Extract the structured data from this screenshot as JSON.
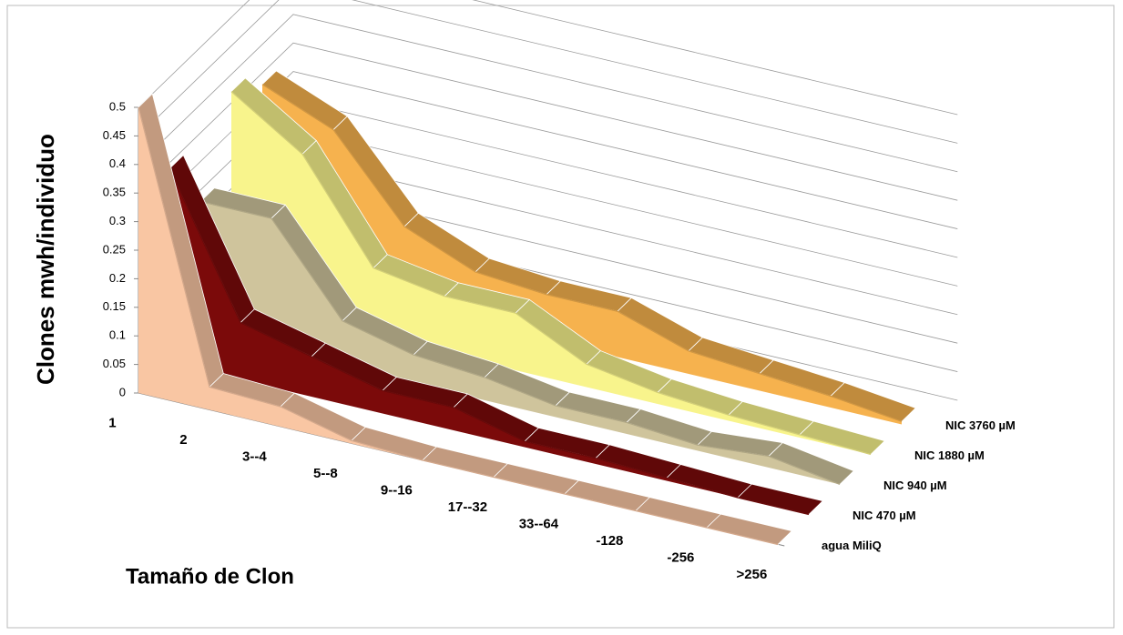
{
  "chart_data": {
    "type": "ribbon3d",
    "y_axis_label": "Clones mwh/individuo",
    "x_axis_label": "Tamaño de Clon",
    "categories": [
      "1",
      "2",
      "3--4",
      "5--8",
      "9--16",
      "17--32",
      "33--64",
      "-128",
      "-256",
      ">256"
    ],
    "series": [
      {
        "name": "agua MiliQ",
        "color": "#f9c6a3",
        "values": [
          0.5,
          0.04,
          0.035,
          0.005,
          0,
          0,
          0,
          0,
          0,
          0
        ]
      },
      {
        "name": "NIC 470 µM",
        "color": "#7b0a0a",
        "values": [
          0.34,
          0.1,
          0.07,
          0.04,
          0.04,
          0.01,
          0.01,
          0.005,
          0,
          0
        ]
      },
      {
        "name": "NIC 940 µM",
        "color": "#cfc49c",
        "values": [
          0.23,
          0.23,
          0.08,
          0.05,
          0.04,
          0.02,
          0.02,
          0.01,
          0.02,
          0
        ]
      },
      {
        "name": "NIC 1880 µM",
        "color": "#f8f48c",
        "values": [
          0.37,
          0.29,
          0.12,
          0.1,
          0.1,
          0.04,
          0.02,
          0.01,
          0.005,
          0
        ]
      },
      {
        "name": "NIC 3760 µM",
        "color": "#f6b24e",
        "values": [
          0.33,
          0.28,
          0.14,
          0.09,
          0.08,
          0.08,
          0.04,
          0.03,
          0.02,
          0.005
        ]
      }
    ],
    "ylim": [
      0,
      0.5
    ],
    "yticks": [
      0,
      0.05,
      0.1,
      0.15,
      0.2,
      0.25,
      0.3,
      0.35,
      0.4,
      0.45,
      0.5
    ],
    "grid": true
  }
}
